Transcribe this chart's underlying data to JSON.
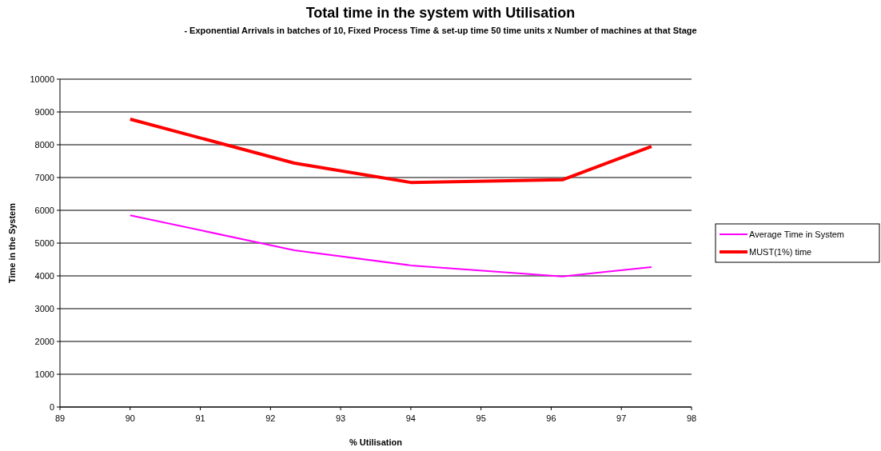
{
  "chart_data": {
    "type": "line",
    "title": "Total time in the system with Utilisation",
    "subtitle": "- Exponential Arrivals in batches of 10, Fixed Process Time & set-up time 50 time units x Number of machines at that Stage",
    "xlabel": "% Utilisation",
    "ylabel": "Time in the System",
    "x": [
      90,
      92.34,
      94,
      96.16,
      97.43
    ],
    "series": [
      {
        "name": "Average Time in System",
        "color": "#ff00ff",
        "values": [
          5850,
          4780,
          4320,
          3980,
          4270
        ]
      },
      {
        "name": "MUST(1%) time",
        "color": "#ff0000",
        "values": [
          8780,
          7440,
          6850,
          6930,
          7950
        ]
      }
    ],
    "xlim": [
      89,
      98
    ],
    "xticks": [
      89,
      90,
      91,
      92,
      93,
      94,
      95,
      96,
      97,
      98
    ],
    "ylim": [
      0,
      10000
    ],
    "yticks": [
      0,
      1000,
      2000,
      3000,
      4000,
      5000,
      6000,
      7000,
      8000,
      9000,
      10000
    ],
    "grid": "y",
    "legend": "right",
    "marker": "none",
    "line_style": "solid"
  }
}
